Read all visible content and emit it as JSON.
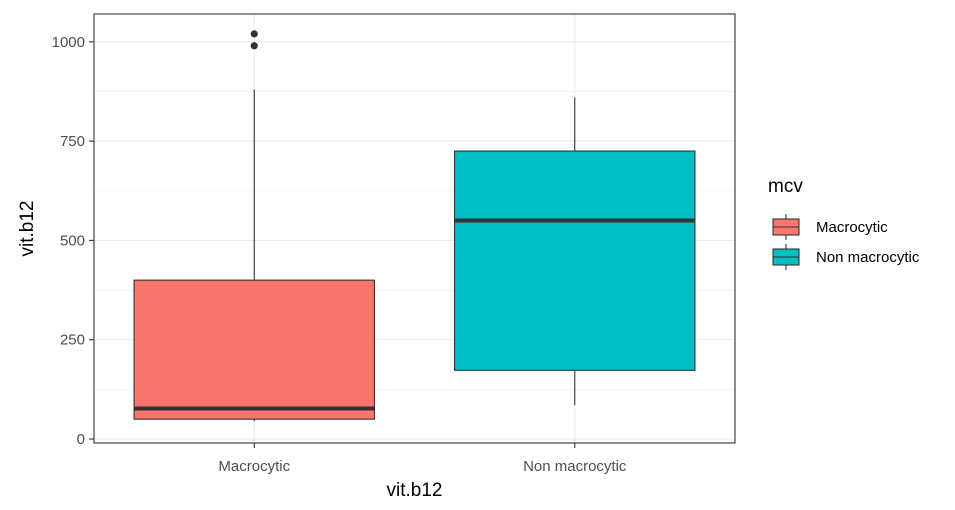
{
  "chart_data": {
    "type": "boxplot",
    "xlabel": "vit.b12",
    "ylabel": "vit.b12",
    "categories": [
      "Macrocytic",
      "Non macrocytic"
    ],
    "ylim": [
      -10,
      1070
    ],
    "yticks": [
      0,
      250,
      500,
      750,
      1000
    ],
    "ytick_labels": [
      "0",
      "250",
      "500",
      "750",
      "1000"
    ],
    "grid": true,
    "legend": {
      "title": "mcv",
      "position": "right",
      "entries": [
        "Macrocytic",
        "Non macrocytic"
      ]
    },
    "boxes": [
      {
        "category": "Macrocytic",
        "min": 45,
        "q1": 50,
        "median": 77,
        "q3": 400,
        "max": 880,
        "outliers": [
          990,
          1020
        ],
        "color": "#F8766D"
      },
      {
        "category": "Non macrocytic",
        "min": 85,
        "q1": 173,
        "median": 550,
        "q3": 725,
        "max": 860,
        "outliers": [],
        "color": "#00BFC4"
      }
    ]
  }
}
